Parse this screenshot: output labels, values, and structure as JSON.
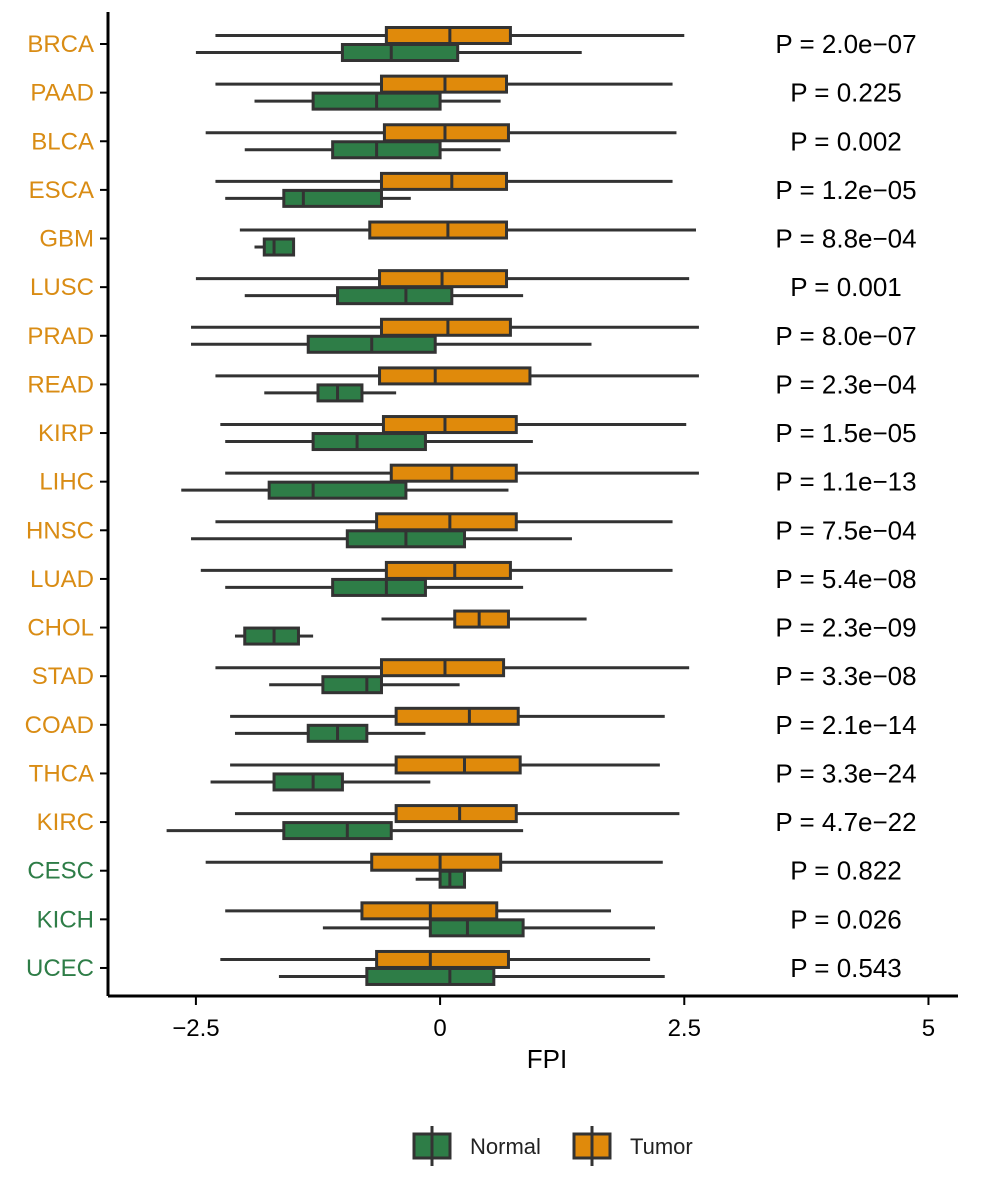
{
  "colors": {
    "normal": "#2e7d47",
    "tumor": "#e08a0b",
    "outline": "#333333",
    "label_tumor_high": "#d98c14",
    "label_normal_high": "#2e7d47"
  },
  "chart_data": {
    "type": "boxplot",
    "orientation": "horizontal",
    "xlabel": "FPI",
    "xlim": [
      -3.4,
      5.2
    ],
    "xticks": [
      -2.5,
      0,
      2.5,
      5
    ],
    "xtick_labels": [
      "−2.5",
      "0",
      "2.5",
      "5"
    ],
    "legend_position": "bottom",
    "legend": [
      {
        "key": "normal",
        "label": "Normal"
      },
      {
        "key": "tumor",
        "label": "Tumor"
      }
    ],
    "groups": [
      {
        "name": "BRCA",
        "pvalue": "P = 2.0e−07",
        "label_color": "tumor",
        "tumor": {
          "min": -2.3,
          "q1": -0.55,
          "median": 0.1,
          "q3": 0.72,
          "max": 2.5
        },
        "normal": {
          "min": -2.5,
          "q1": -1.0,
          "median": -0.5,
          "q3": 0.18,
          "max": 1.45
        }
      },
      {
        "name": "PAAD",
        "pvalue": "P = 0.225",
        "label_color": "tumor",
        "tumor": {
          "min": -2.3,
          "q1": -0.6,
          "median": 0.05,
          "q3": 0.68,
          "max": 2.38
        },
        "normal": {
          "min": -1.9,
          "q1": -1.3,
          "median": -0.65,
          "q3": 0.0,
          "max": 0.62
        }
      },
      {
        "name": "BLCA",
        "pvalue": "P = 0.002",
        "label_color": "tumor",
        "tumor": {
          "min": -2.4,
          "q1": -0.57,
          "median": 0.05,
          "q3": 0.7,
          "max": 2.42
        },
        "normal": {
          "min": -2.0,
          "q1": -1.1,
          "median": -0.65,
          "q3": 0.0,
          "max": 0.62
        }
      },
      {
        "name": "ESCA",
        "pvalue": "P = 1.2e−05",
        "label_color": "tumor",
        "tumor": {
          "min": -2.3,
          "q1": -0.6,
          "median": 0.12,
          "q3": 0.68,
          "max": 2.38
        },
        "normal": {
          "min": -2.2,
          "q1": -1.6,
          "median": -1.4,
          "q3": -0.6,
          "max": -0.3
        }
      },
      {
        "name": "GBM",
        "pvalue": "P = 8.8e−04",
        "label_color": "tumor",
        "tumor": {
          "min": -2.05,
          "q1": -0.72,
          "median": 0.08,
          "q3": 0.68,
          "max": 2.62
        },
        "normal": {
          "min": -1.9,
          "q1": -1.8,
          "median": -1.7,
          "q3": -1.5,
          "max": -1.5
        }
      },
      {
        "name": "LUSC",
        "pvalue": "P = 0.001",
        "label_color": "tumor",
        "tumor": {
          "min": -2.5,
          "q1": -0.62,
          "median": 0.02,
          "q3": 0.68,
          "max": 2.55
        },
        "normal": {
          "min": -2.0,
          "q1": -1.05,
          "median": -0.35,
          "q3": 0.12,
          "max": 0.85
        }
      },
      {
        "name": "PRAD",
        "pvalue": "P = 8.0e−07",
        "label_color": "tumor",
        "tumor": {
          "min": -2.55,
          "q1": -0.6,
          "median": 0.08,
          "q3": 0.72,
          "max": 2.65
        },
        "normal": {
          "min": -2.55,
          "q1": -1.35,
          "median": -0.7,
          "q3": -0.05,
          "max": 1.55
        }
      },
      {
        "name": "READ",
        "pvalue": "P = 2.3e−04",
        "label_color": "tumor",
        "tumor": {
          "min": -2.3,
          "q1": -0.62,
          "median": -0.05,
          "q3": 0.92,
          "max": 2.65
        },
        "normal": {
          "min": -1.8,
          "q1": -1.25,
          "median": -1.05,
          "q3": -0.8,
          "max": -0.45
        }
      },
      {
        "name": "KIRP",
        "pvalue": "P = 1.5e−05",
        "label_color": "tumor",
        "tumor": {
          "min": -2.25,
          "q1": -0.58,
          "median": 0.05,
          "q3": 0.78,
          "max": 2.52
        },
        "normal": {
          "min": -2.2,
          "q1": -1.3,
          "median": -0.85,
          "q3": -0.15,
          "max": 0.95
        }
      },
      {
        "name": "LIHC",
        "pvalue": "P = 1.1e−13",
        "label_color": "tumor",
        "tumor": {
          "min": -2.2,
          "q1": -0.5,
          "median": 0.12,
          "q3": 0.78,
          "max": 2.65
        },
        "normal": {
          "min": -2.65,
          "q1": -1.75,
          "median": -1.3,
          "q3": -0.35,
          "max": 0.7
        }
      },
      {
        "name": "HNSC",
        "pvalue": "P = 7.5e−04",
        "label_color": "tumor",
        "tumor": {
          "min": -2.3,
          "q1": -0.65,
          "median": 0.1,
          "q3": 0.78,
          "max": 2.38
        },
        "normal": {
          "min": -2.55,
          "q1": -0.95,
          "median": -0.35,
          "q3": 0.25,
          "max": 1.35
        }
      },
      {
        "name": "LUAD",
        "pvalue": "P = 5.4e−08",
        "label_color": "tumor",
        "tumor": {
          "min": -2.45,
          "q1": -0.55,
          "median": 0.15,
          "q3": 0.72,
          "max": 2.38
        },
        "normal": {
          "min": -2.2,
          "q1": -1.1,
          "median": -0.55,
          "q3": -0.15,
          "max": 0.85
        }
      },
      {
        "name": "CHOL",
        "pvalue": "P = 2.3e−09",
        "label_color": "tumor",
        "tumor": {
          "min": -0.6,
          "q1": 0.15,
          "median": 0.4,
          "q3": 0.7,
          "max": 1.5
        },
        "normal": {
          "min": -2.1,
          "q1": -2.0,
          "median": -1.7,
          "q3": -1.45,
          "max": -1.3
        }
      },
      {
        "name": "STAD",
        "pvalue": "P = 3.3e−08",
        "label_color": "tumor",
        "tumor": {
          "min": -2.3,
          "q1": -0.6,
          "median": 0.05,
          "q3": 0.65,
          "max": 2.55
        },
        "normal": {
          "min": -1.75,
          "q1": -1.2,
          "median": -0.75,
          "q3": -0.6,
          "max": 0.2
        }
      },
      {
        "name": "COAD",
        "pvalue": "P = 2.1e−14",
        "label_color": "tumor",
        "tumor": {
          "min": -2.15,
          "q1": -0.45,
          "median": 0.3,
          "q3": 0.8,
          "max": 2.3
        },
        "normal": {
          "min": -2.1,
          "q1": -1.35,
          "median": -1.05,
          "q3": -0.75,
          "max": -0.15
        }
      },
      {
        "name": "THCA",
        "pvalue": "P = 3.3e−24",
        "label_color": "tumor",
        "tumor": {
          "min": -2.15,
          "q1": -0.45,
          "median": 0.25,
          "q3": 0.82,
          "max": 2.25
        },
        "normal": {
          "min": -2.35,
          "q1": -1.7,
          "median": -1.3,
          "q3": -1.0,
          "max": -0.1
        }
      },
      {
        "name": "KIRC",
        "pvalue": "P = 4.7e−22",
        "label_color": "tumor",
        "tumor": {
          "min": -2.1,
          "q1": -0.45,
          "median": 0.2,
          "q3": 0.78,
          "max": 2.45
        },
        "normal": {
          "min": -2.8,
          "q1": -1.6,
          "median": -0.95,
          "q3": -0.5,
          "max": 0.85
        }
      },
      {
        "name": "CESC",
        "pvalue": "P = 0.822",
        "label_color": "normal",
        "tumor": {
          "min": -2.4,
          "q1": -0.7,
          "median": 0.0,
          "q3": 0.62,
          "max": 2.28
        },
        "normal": {
          "min": -0.25,
          "q1": 0.0,
          "median": 0.1,
          "q3": 0.25,
          "max": 0.25
        }
      },
      {
        "name": "KICH",
        "pvalue": "P = 0.026",
        "label_color": "normal",
        "tumor": {
          "min": -2.2,
          "q1": -0.8,
          "median": -0.1,
          "q3": 0.58,
          "max": 1.75
        },
        "normal": {
          "min": -1.2,
          "q1": -0.1,
          "median": 0.28,
          "q3": 0.85,
          "max": 2.2
        }
      },
      {
        "name": "UCEC",
        "pvalue": "P = 0.543",
        "label_color": "normal",
        "tumor": {
          "min": -2.25,
          "q1": -0.65,
          "median": -0.1,
          "q3": 0.7,
          "max": 2.15
        },
        "normal": {
          "min": -1.65,
          "q1": -0.75,
          "median": 0.1,
          "q3": 0.55,
          "max": 2.3
        }
      }
    ]
  }
}
